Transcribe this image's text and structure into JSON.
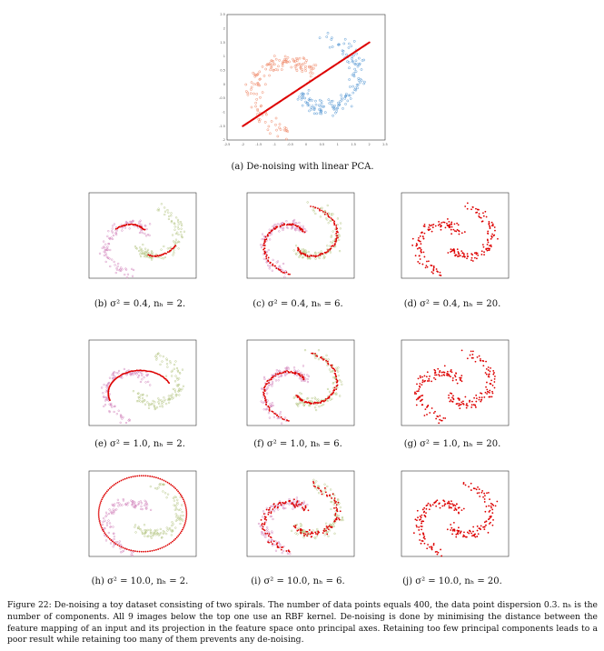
{
  "figure": {
    "label": "Figure 22:",
    "caption": "De-noising a toy dataset consisting of two spirals. The number of data points equals 400, the data point dispersion 0.3. nₕ is the number of components. All 9 images below the top one use an RBF kernel. De-noising is done by minimising the distance between the feature mapping of an input and its projection in the feature space onto principal axes. Retaining too few principal components leads to a poor result while retaining too many of them prevents any de-noising."
  },
  "subfigures": [
    {
      "id": "a",
      "caption": "(a) De-noising with linear PCA."
    },
    {
      "id": "b",
      "caption": "(b) σ² = 0.4, nₕ = 2."
    },
    {
      "id": "c",
      "caption": "(c) σ² = 0.4, nₕ = 6."
    },
    {
      "id": "d",
      "caption": "(d) σ² = 0.4, nₕ = 20."
    },
    {
      "id": "e",
      "caption": "(e) σ² = 1.0, nₕ = 2."
    },
    {
      "id": "f",
      "caption": "(f) σ² = 1.0, nₕ = 6."
    },
    {
      "id": "g",
      "caption": "(g) σ² = 1.0, nₕ = 20."
    },
    {
      "id": "h",
      "caption": "(h) σ² = 10.0, nₕ = 2."
    },
    {
      "id": "i",
      "caption": "(i) σ² = 10.0, nₕ = 6."
    },
    {
      "id": "j",
      "caption": "(j) σ² = 10.0, nₕ = 20."
    }
  ],
  "chart_data": [
    {
      "type": "scatter",
      "panel": "a",
      "xlim": [
        -2.5,
        2.5
      ],
      "ylim": [
        -2,
        2.5
      ],
      "xticks": [
        "-2.5",
        "-2",
        "-1.5",
        "-1",
        "-0.5",
        "0",
        "0.5",
        "1",
        "1.5",
        "2",
        "2.5"
      ],
      "yticks": [
        "2.5",
        "2",
        "1.5",
        "1",
        "0.5",
        "0",
        "-0.5",
        "-1",
        "-1.5",
        "-2"
      ],
      "xlabel": "",
      "ylabel": "",
      "series": [
        {
          "role": "noisy spiral 1",
          "color": "#f08a6a",
          "points": [
            [
              -1.9,
              -0.6
            ],
            [
              -1.7,
              -0.2
            ],
            [
              -1.5,
              0.3
            ],
            [
              -1.2,
              0.7
            ],
            [
              -0.9,
              1.0
            ],
            [
              -0.5,
              1.2
            ],
            [
              -1.6,
              -1.0
            ],
            [
              -1.2,
              -1.3
            ],
            [
              -0.7,
              -1.4
            ],
            [
              -0.2,
              -1.5
            ],
            [
              -2.0,
              -0.3
            ],
            [
              -1.8,
              0.1
            ]
          ]
        },
        {
          "role": "noisy spiral 2",
          "color": "#5b9bd5",
          "points": [
            [
              -0.2,
              2.0
            ],
            [
              0.4,
              2.0
            ],
            [
              1.0,
              1.9
            ],
            [
              1.6,
              1.7
            ],
            [
              2.0,
              1.2
            ],
            [
              2.1,
              0.6
            ],
            [
              1.9,
              0.0
            ],
            [
              1.5,
              -0.4
            ],
            [
              1.0,
              -0.6
            ],
            [
              0.5,
              -0.5
            ],
            [
              0.2,
              -0.1
            ],
            [
              1.3,
              1.8
            ]
          ]
        },
        {
          "role": "de-noised",
          "color": "#dd0000",
          "line": {
            "from": [
              -2.0,
              -1.5
            ],
            "to": [
              2.0,
              1.5
            ]
          }
        }
      ]
    },
    {
      "type": "scatter",
      "panel": "b",
      "xlim": [
        -2.5,
        2.5
      ],
      "ylim": [
        -2,
        2.5
      ],
      "xlabel": "",
      "ylabel": "",
      "note": "red de-noised points collapse onto two short arcs"
    },
    {
      "type": "scatter",
      "panel": "c",
      "xlim": [
        -2.5,
        2.5
      ],
      "ylim": [
        -2,
        2.5
      ],
      "xlabel": "",
      "ylabel": "",
      "note": "red points follow both spirals closely"
    },
    {
      "type": "scatter",
      "panel": "d",
      "xlim": [
        -2.5,
        2.5
      ],
      "ylim": [
        -2,
        2.5
      ],
      "xlabel": "",
      "ylabel": "",
      "note": "red points retain the noise"
    },
    {
      "type": "scatter",
      "panel": "e",
      "xlim": [
        -2.5,
        2.5
      ],
      "ylim": [
        -2,
        2.5
      ],
      "xlabel": "",
      "ylabel": "",
      "note": "red points form one large arc"
    },
    {
      "type": "scatter",
      "panel": "f",
      "xlim": [
        -2.5,
        2.5
      ],
      "ylim": [
        -2,
        2.5
      ],
      "xlabel": "",
      "ylabel": "",
      "note": "red points trace both spirals"
    },
    {
      "type": "scatter",
      "panel": "g",
      "xlim": [
        -2.5,
        2.5
      ],
      "ylim": [
        -2,
        2.5
      ],
      "xlabel": "",
      "ylabel": "",
      "note": "red points retain the noise"
    },
    {
      "type": "scatter",
      "panel": "h",
      "xlim": [
        -2.5,
        2.5
      ],
      "ylim": [
        -2,
        2.5
      ],
      "xlabel": "",
      "ylabel": "",
      "note": "red points form a large ring"
    },
    {
      "type": "scatter",
      "panel": "i",
      "xlim": [
        -2.5,
        2.5
      ],
      "ylim": [
        -2,
        2.5
      ],
      "xlabel": "",
      "ylabel": "",
      "note": "red points partially de-noised"
    },
    {
      "type": "scatter",
      "panel": "j",
      "xlim": [
        -2.5,
        2.5
      ],
      "ylim": [
        -2,
        2.5
      ],
      "xlabel": "",
      "ylabel": "",
      "note": "red points retain the noise"
    }
  ],
  "colors": {
    "noisy_a_1": "#f08a6a",
    "noisy_a_2": "#5b9bd5",
    "noisy_rbf_1": "#d58bc0",
    "noisy_rbf_2": "#b9c98a",
    "denoised": "#dd0000",
    "axis": "#333333"
  }
}
